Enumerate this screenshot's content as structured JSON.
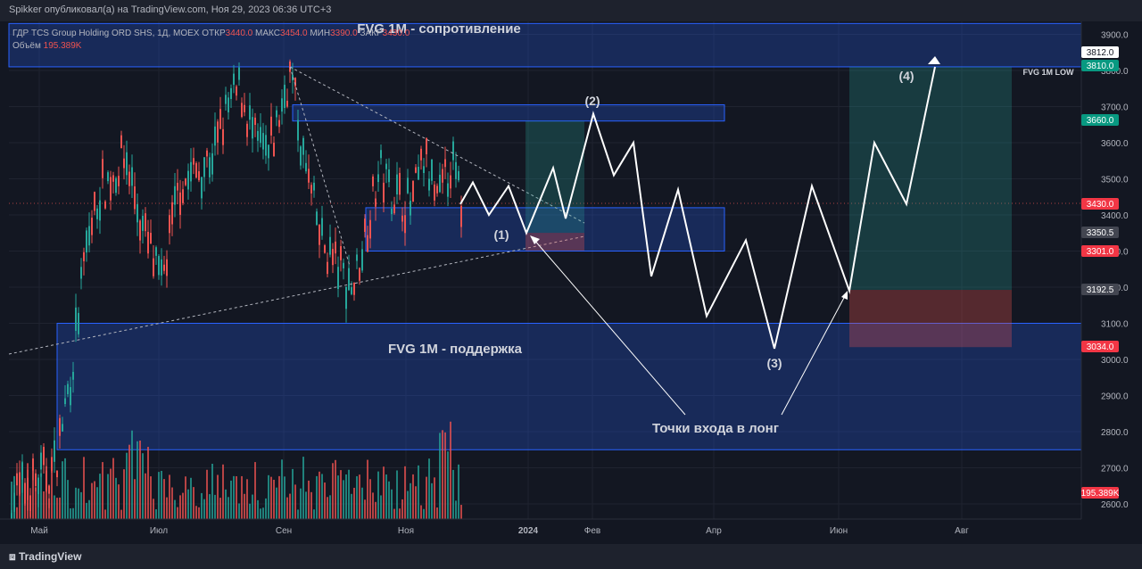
{
  "header": {
    "published": "Spikker опубликовал(а) на TradingView.com, Ноя 29, 2023 06:36 UTC+3"
  },
  "legend": {
    "symbol": "ГДР TCS Group Holding ORD SHS, 1Д, MOEX",
    "open_label": "ОТКР",
    "open": "3440.0",
    "high_label": "МАКС",
    "high": "3454.0",
    "low_label": "МИН",
    "low": "3390.0",
    "close_label": "ЗАКР",
    "close": "3430.0",
    "volume_label": "Объём",
    "volume": "195.389K"
  },
  "footer": {
    "brand": "TradingView"
  },
  "colors": {
    "bg": "#131722",
    "up": "#26a69a",
    "down": "#ef5350",
    "zone_fill": "rgba(41,98,255,0.25)",
    "zone_border": "#2962ff",
    "long_green": "rgba(38,166,154,0.25)",
    "long_red": "rgba(239,83,80,0.3)",
    "path": "#ffffff"
  },
  "chart_data": {
    "type": "candlestick",
    "title": "",
    "y_axis": {
      "min": 2580,
      "max": 3930,
      "ticks": [
        2600,
        2700,
        2800,
        2900,
        3000,
        3100,
        3200,
        3300,
        3400,
        3500,
        3600,
        3700,
        3800,
        3900
      ]
    },
    "x_axis": {
      "ticks": [
        "Май",
        "Июл",
        "Сен",
        "Ноя",
        "2024",
        "Фев",
        "Апр",
        "Июн",
        "Авг"
      ]
    },
    "price_labels": [
      {
        "value": "3812.0",
        "style": "white"
      },
      {
        "value": "3810.0",
        "style": "green"
      },
      {
        "value": "3660.0",
        "style": "green"
      },
      {
        "value": "3430.0",
        "style": "red"
      },
      {
        "value": "3350.5",
        "style": "gray"
      },
      {
        "value": "3301.0",
        "style": "red"
      },
      {
        "value": "3192.5",
        "style": "gray"
      },
      {
        "value": "3034.0",
        "style": "red"
      },
      {
        "value": "195.389K",
        "style": "red"
      }
    ],
    "zones": [
      {
        "label": "FVG 1M - сопротивление",
        "top": 3930,
        "bottom": 3810
      },
      {
        "label": "FVG 1M - поддержка",
        "top": 3100,
        "bottom": 2750
      },
      {
        "label": "",
        "top": 3705,
        "bottom": 3660
      },
      {
        "label": "",
        "top": 3420,
        "bottom": 3300
      }
    ],
    "fvg_low_label": "FVG 1M LOW",
    "annotations": [
      "(1)",
      "(2)",
      "(3)",
      "(4)",
      "Точки входа в лонг"
    ],
    "price_path": [
      3430,
      3490,
      3400,
      3480,
      3350,
      3530,
      3390,
      3680,
      3510,
      3600,
      3230,
      3470,
      3120,
      3330,
      3030,
      3480,
      3190,
      3600,
      3430,
      3810
    ],
    "last_close": 3430.0,
    "last_volume": "195.389K"
  }
}
